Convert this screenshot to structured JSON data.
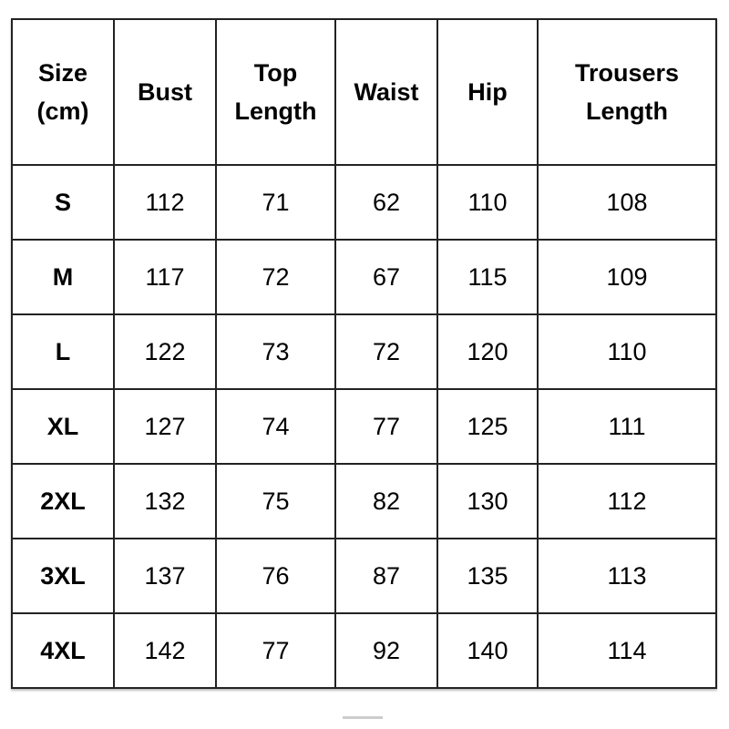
{
  "table": {
    "headers": [
      [
        "Size",
        "(cm)"
      ],
      [
        "Bust"
      ],
      [
        "Top",
        "Length"
      ],
      [
        "Waist"
      ],
      [
        "Hip"
      ],
      [
        "Trousers",
        "Length"
      ]
    ],
    "rows": [
      [
        "S",
        "112",
        "71",
        "62",
        "110",
        "108"
      ],
      [
        "M",
        "117",
        "72",
        "67",
        "115",
        "109"
      ],
      [
        "L",
        "122",
        "73",
        "72",
        "120",
        "110"
      ],
      [
        "XL",
        "127",
        "74",
        "77",
        "125",
        "111"
      ],
      [
        "2XL",
        "132",
        "75",
        "82",
        "130",
        "112"
      ],
      [
        "3XL",
        "137",
        "76",
        "87",
        "135",
        "113"
      ],
      [
        "4XL",
        "142",
        "77",
        "92",
        "140",
        "114"
      ]
    ]
  }
}
